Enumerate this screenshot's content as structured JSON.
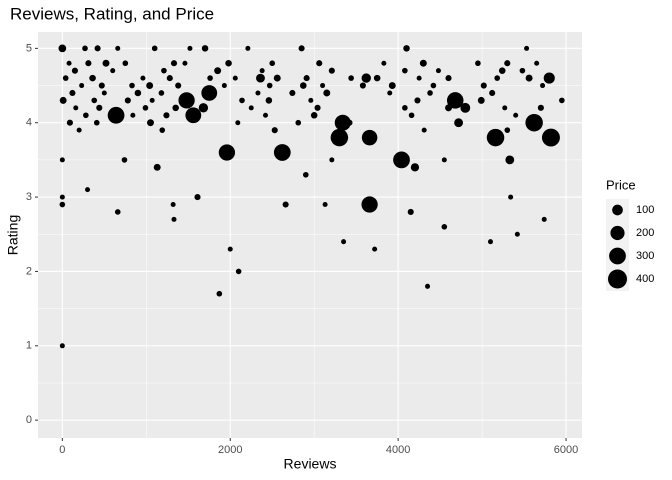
{
  "chart_data": {
    "type": "scatter",
    "title": "Reviews, Rating, and Price",
    "x_label": "Reviews",
    "y_label": "Rating",
    "xlim": [
      -290,
      6190
    ],
    "ylim": [
      -0.24,
      5.22
    ],
    "xticks": [
      0,
      2000,
      4000,
      6000
    ],
    "yticks": [
      0,
      1,
      2,
      3,
      4,
      5
    ],
    "grid": true,
    "color": "#000000",
    "size_legend": {
      "title": "Price",
      "values": [
        100,
        200,
        300,
        400
      ]
    },
    "x": [
      640,
      1480,
      1560,
      1750,
      1960,
      2620,
      3300,
      3340,
      3660,
      3660,
      4040,
      4680,
      5160,
      5620,
      5820,
      5800,
      4800,
      1680,
      3620,
      4200,
      5330,
      2360,
      4720,
      0,
      0,
      0,
      0,
      1870,
      2100,
      2000,
      4350,
      5100,
      3350,
      3720,
      4550,
      5420,
      5740,
      660,
      2660,
      2900,
      3130,
      1320,
      1330,
      5340,
      4150,
      1130,
      1610,
      300,
      270,
      420,
      660,
      1100,
      1520,
      1700,
      2210,
      2850,
      4100,
      5530,
      80,
      310,
      520,
      750,
      1330,
      1460,
      1980,
      2500,
      3060,
      3830,
      4300,
      4950,
      5300,
      5650,
      150,
      600,
      1210,
      1850,
      2380,
      3210,
      4080,
      4480,
      5240,
      5480,
      40,
      360,
      960,
      1280,
      1760,
      2060,
      2560,
      2910,
      3440,
      3750,
      4250,
      4600,
      5180,
      5560,
      230,
      470,
      830,
      1040,
      1380,
      1930,
      2470,
      2870,
      3100,
      3580,
      3930,
      4420,
      5020,
      5720,
      120,
      500,
      900,
      1180,
      2330,
      2740,
      3150,
      3900,
      4380,
      5120,
      10,
      380,
      780,
      1070,
      2140,
      2460,
      2960,
      4230,
      4990,
      5950,
      160,
      440,
      990,
      1350,
      2250,
      3040,
      4080,
      4600,
      5270,
      5700,
      280,
      840,
      1240,
      2420,
      3000,
      4160,
      5400,
      90,
      410,
      1050,
      2090,
      2810,
      3420,
      5570,
      200,
      1190,
      2530,
      4310,
      5300,
      0,
      740,
      3210,
      4550
    ],
    "y": [
      4.1,
      4.3,
      4.1,
      4.4,
      3.6,
      3.6,
      3.8,
      4.0,
      3.8,
      2.9,
      3.5,
      4.3,
      3.8,
      4.0,
      3.8,
      4.6,
      4.2,
      4.2,
      4.6,
      3.4,
      3.5,
      4.6,
      4.0,
      5.0,
      1.0,
      2.9,
      3.0,
      1.7,
      2.0,
      2.3,
      1.8,
      2.4,
      2.4,
      2.3,
      2.6,
      2.5,
      2.7,
      2.8,
      2.9,
      3.3,
      2.9,
      2.9,
      2.7,
      3.0,
      2.8,
      3.4,
      3.0,
      3.1,
      5.0,
      5.0,
      5.0,
      5.0,
      5.0,
      5.0,
      5.0,
      5.0,
      5.0,
      5.0,
      4.8,
      4.8,
      4.8,
      4.8,
      4.8,
      4.8,
      4.8,
      4.8,
      4.8,
      4.8,
      4.8,
      4.8,
      4.8,
      4.8,
      4.7,
      4.7,
      4.7,
      4.7,
      4.7,
      4.7,
      4.7,
      4.7,
      4.7,
      4.7,
      4.6,
      4.6,
      4.6,
      4.6,
      4.6,
      4.6,
      4.6,
      4.6,
      4.6,
      4.6,
      4.6,
      4.6,
      4.6,
      4.6,
      4.5,
      4.5,
      4.5,
      4.5,
      4.5,
      4.5,
      4.5,
      4.5,
      4.5,
      4.5,
      4.5,
      4.5,
      4.5,
      4.5,
      4.4,
      4.4,
      4.4,
      4.4,
      4.4,
      4.4,
      4.4,
      4.4,
      4.4,
      4.4,
      4.3,
      4.3,
      4.3,
      4.3,
      4.3,
      4.3,
      4.3,
      4.3,
      4.3,
      4.3,
      4.2,
      4.2,
      4.2,
      4.2,
      4.2,
      4.2,
      4.2,
      4.2,
      4.2,
      4.2,
      4.1,
      4.1,
      4.1,
      4.1,
      4.1,
      4.1,
      4.1,
      4.0,
      4.0,
      4.0,
      4.0,
      4.0,
      4.0,
      4.0,
      3.9,
      3.9,
      3.9,
      3.9,
      3.9,
      3.5,
      3.5,
      3.5,
      3.5
    ],
    "sizes": [
      300,
      280,
      260,
      260,
      280,
      300,
      330,
      270,
      250,
      280,
      300,
      290,
      330,
      330,
      350,
      110,
      80,
      70,
      70,
      50,
      60,
      60,
      60,
      40,
      10,
      15,
      10,
      15,
      15,
      10,
      10,
      10,
      10,
      10,
      15,
      10,
      10,
      15,
      20,
      15,
      10,
      10,
      10,
      10,
      20,
      30,
      20,
      10,
      15,
      20,
      10,
      15,
      10,
      25,
      10,
      20,
      25,
      10,
      10,
      20,
      30,
      15,
      20,
      10,
      25,
      15,
      20,
      10,
      30,
      15,
      20,
      10,
      20,
      10,
      15,
      30,
      10,
      20,
      15,
      10,
      25,
      15,
      15,
      25,
      10,
      20,
      15,
      10,
      30,
      20,
      15,
      25,
      10,
      20,
      15,
      30,
      10,
      20,
      15,
      30,
      20,
      10,
      15,
      25,
      10,
      20,
      30,
      15,
      20,
      10,
      20,
      10,
      25,
      15,
      10,
      20,
      30,
      10,
      15,
      20,
      30,
      15,
      20,
      10,
      15,
      25,
      10,
      20,
      30,
      15,
      10,
      20,
      15,
      25,
      10,
      20,
      15,
      30,
      10,
      20,
      15,
      10,
      20,
      10,
      25,
      15,
      10,
      20,
      15,
      30,
      10,
      15,
      20,
      10,
      10,
      15,
      20,
      10,
      15,
      10,
      15,
      10,
      10
    ]
  }
}
